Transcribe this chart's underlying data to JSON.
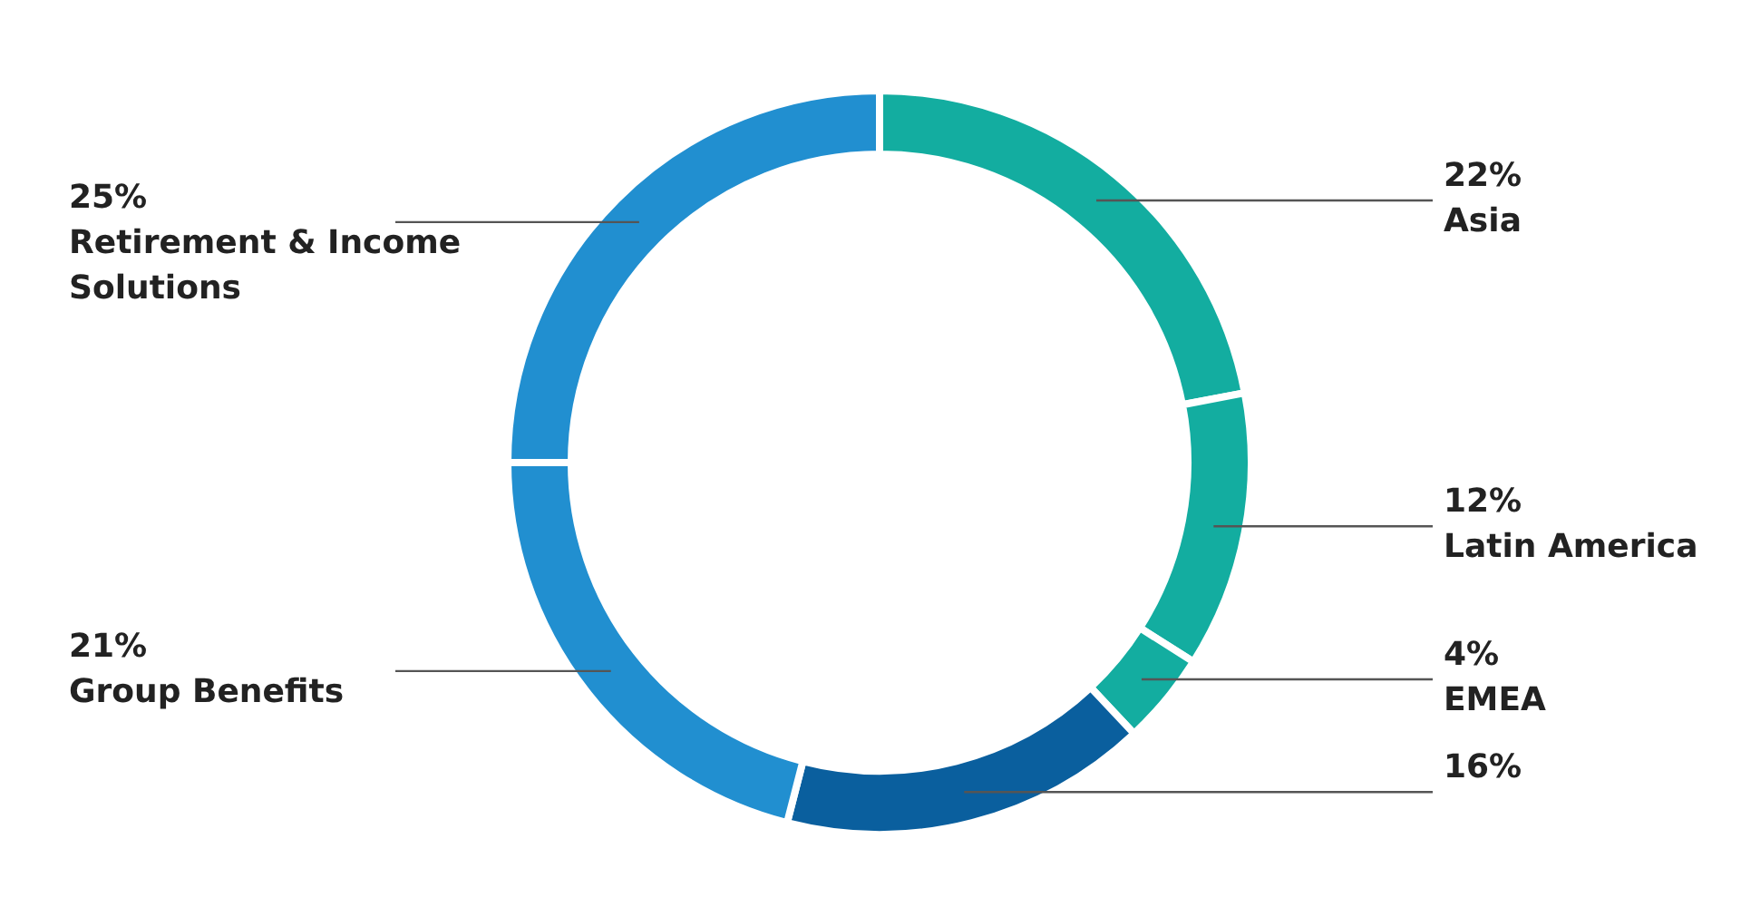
{
  "chart_data": {
    "type": "donut",
    "categories": [
      "Asia",
      "Latin America",
      "EMEA",
      null,
      "Group Benefits",
      "Retirement & Income Solutions"
    ],
    "values": [
      22,
      12,
      4,
      16,
      21,
      25
    ],
    "value_labels": [
      "22%",
      "12%",
      "4%",
      "16%",
      "21%",
      "25%"
    ],
    "colors": [
      "#13ada0",
      "#13ada0",
      "#13ada0",
      "#0a5f9e",
      "#218fd0",
      "#218fd0"
    ],
    "legend": false
  }
}
